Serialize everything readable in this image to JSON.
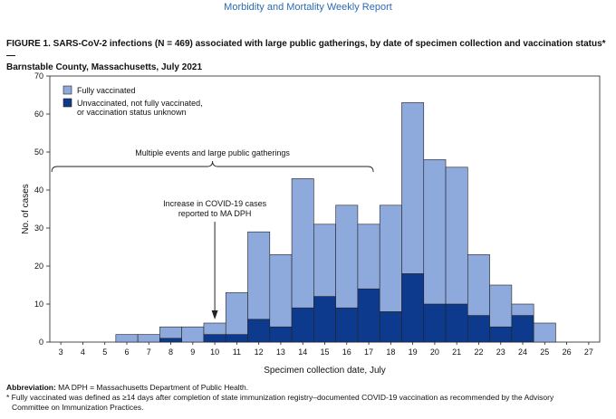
{
  "header": "Morbidity and Mortality Weekly Report",
  "figure_title_line1": "FIGURE 1. SARS-CoV-2 infections (N = 469) associated with large public gatherings, by date of specimen collection and vaccination status* —",
  "figure_title_line2": "Barnstable County, Massachusetts, July 2021",
  "footnotes": {
    "abbrev_label": "Abbreviation:",
    "abbrev_text": "MA DPH = Massachusetts Department of Public Health.",
    "note_line1": "* Fully vaccinated was defined as ≥14 days after completion of state immunization registry–documented COVID-19 vaccination as recommended by the Advisory",
    "note_line2": "Committee on Immunization Practices."
  },
  "colors": {
    "fully_vaccinated": "#8ea9db",
    "unvaccinated": "#0d3a8c",
    "header": "#2a6bb7"
  },
  "chart_data": {
    "type": "bar",
    "stacked": true,
    "xlabel": "Specimen collection date, July",
    "ylabel": "No. of cases",
    "ylim": [
      0,
      70
    ],
    "yticks": [
      0,
      10,
      20,
      30,
      40,
      50,
      60,
      70
    ],
    "categories": [
      "3",
      "4",
      "5",
      "6",
      "7",
      "8",
      "9",
      "10",
      "11",
      "12",
      "13",
      "14",
      "15",
      "16",
      "17",
      "18",
      "19",
      "20",
      "21",
      "22",
      "23",
      "24",
      "25",
      "26",
      "27"
    ],
    "series": [
      {
        "name": "Unvaccinated, not fully vaccinated, or vaccination status unknown",
        "values": [
          0,
          0,
          0,
          0,
          0,
          1,
          0,
          2,
          2,
          6,
          4,
          9,
          12,
          9,
          14,
          8,
          18,
          10,
          10,
          7,
          4,
          7,
          0,
          0,
          0
        ]
      },
      {
        "name": "Fully vaccinated",
        "values": [
          0,
          0,
          0,
          2,
          2,
          3,
          4,
          3,
          11,
          23,
          19,
          34,
          19,
          27,
          17,
          28,
          45,
          38,
          36,
          16,
          11,
          3,
          5,
          0,
          0
        ]
      }
    ],
    "legend": {
      "position": "top-left",
      "items": [
        "Fully vaccinated",
        "Unvaccinated, not fully vaccinated,",
        "or vaccination status unknown"
      ]
    },
    "annotations": {
      "brace_label": "Multiple events and large public gatherings",
      "brace_from": "3",
      "brace_to": "17",
      "arrow_line1": "Increase in COVID-19 cases",
      "arrow_line2": "reported to MA DPH",
      "arrow_at": "10"
    }
  }
}
